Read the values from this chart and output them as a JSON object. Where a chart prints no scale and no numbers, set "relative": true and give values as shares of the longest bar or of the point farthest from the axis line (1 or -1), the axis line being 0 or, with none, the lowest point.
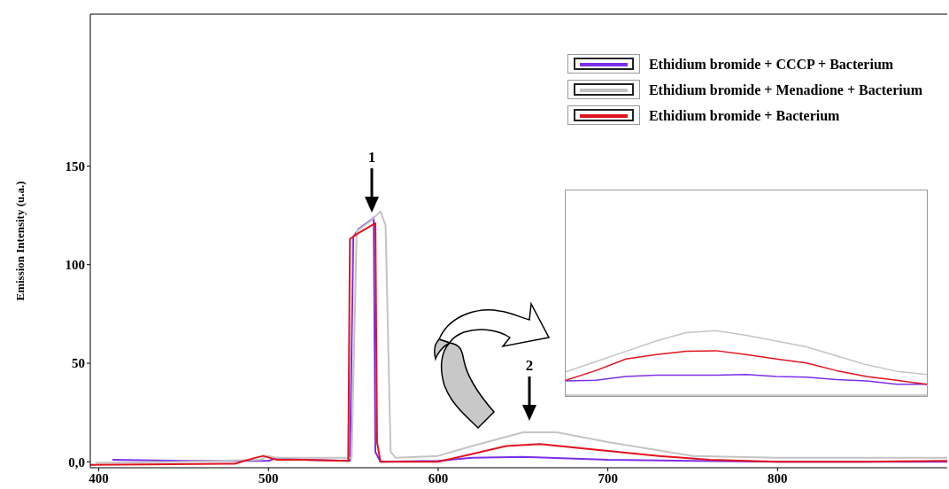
{
  "chart_data": [
    {
      "type": "line",
      "ylabel": "Emission Intensity (u.a.)",
      "xlim": [
        395,
        900
      ],
      "xticks": [
        400,
        500,
        600,
        700,
        800
      ],
      "ylim": [
        -3,
        227
      ],
      "yticks": [
        {
          "value": 0,
          "label": "0,0"
        },
        50,
        100,
        150
      ],
      "grid": false,
      "legend": "top right",
      "marker": "none",
      "line_style": "solid",
      "annotations": [
        "1",
        "2"
      ],
      "series": [
        {
          "name": "Ethidium bromide + CCCP + Bacterium",
          "color": "#7b2fe8",
          "x": [
            408,
            450,
            500,
            505,
            520,
            548,
            550,
            553,
            561,
            562,
            563,
            566,
            600,
            620,
            650,
            700,
            750,
            800,
            850,
            900
          ],
          "values": [
            1,
            0.5,
            0.5,
            2,
            1,
            0.5,
            114,
            118,
            123,
            124,
            5,
            0,
            0.5,
            2,
            2.5,
            1,
            0.5,
            0,
            0,
            0
          ]
        },
        {
          "name": "Ethidium bromide + Menadione + Bacterium",
          "color": "#c4c4c4",
          "x": [
            398,
            450,
            495,
            500,
            505,
            520,
            549,
            552,
            560,
            566,
            569,
            572,
            575,
            600,
            620,
            650,
            670,
            700,
            750,
            800,
            850,
            900
          ],
          "values": [
            -0.5,
            0,
            1,
            3,
            2,
            2,
            2,
            117,
            122,
            127,
            120,
            5,
            2,
            3,
            8,
            15,
            15,
            10,
            3,
            2,
            2,
            2
          ]
        },
        {
          "name": "Ethidium bromide + Bacterium",
          "color": "#e0141e",
          "x": [
            395,
            480,
            492,
            497,
            505,
            520,
            547,
            548,
            553,
            563,
            564,
            566,
            600,
            620,
            640,
            660,
            700,
            730,
            760,
            800,
            850,
            900
          ],
          "values": [
            -1.5,
            -1,
            2,
            3,
            1,
            1,
            0.5,
            113,
            116,
            121,
            10,
            0,
            0,
            4,
            8,
            9,
            5.5,
            3,
            1,
            0,
            0,
            0.5
          ]
        }
      ]
    },
    {
      "type": "line",
      "relative": true,
      "categories": [
        null,
        null,
        null,
        null,
        null,
        null,
        null,
        null,
        null,
        null,
        null,
        null,
        null
      ],
      "marker": "none",
      "series": [
        {
          "color": "#7b2fe8",
          "values": [
            0.22,
            0.23,
            0.29,
            0.31,
            0.31,
            0.31,
            0.32,
            0.29,
            0.28,
            0.24,
            0.22,
            0.17,
            0.17
          ]
        },
        {
          "color": "#c4c4c4",
          "values": [
            0.36,
            0.52,
            0.68,
            0.84,
            0.97,
            1,
            0.93,
            0.84,
            0.75,
            0.61,
            0.47,
            0.37,
            0.32
          ]
        },
        {
          "color": "#e0141e",
          "values": [
            0.23,
            0.38,
            0.56,
            0.63,
            0.68,
            0.69,
            0.63,
            0.56,
            0.5,
            0.38,
            0.29,
            0.23,
            0.17
          ]
        }
      ]
    }
  ]
}
